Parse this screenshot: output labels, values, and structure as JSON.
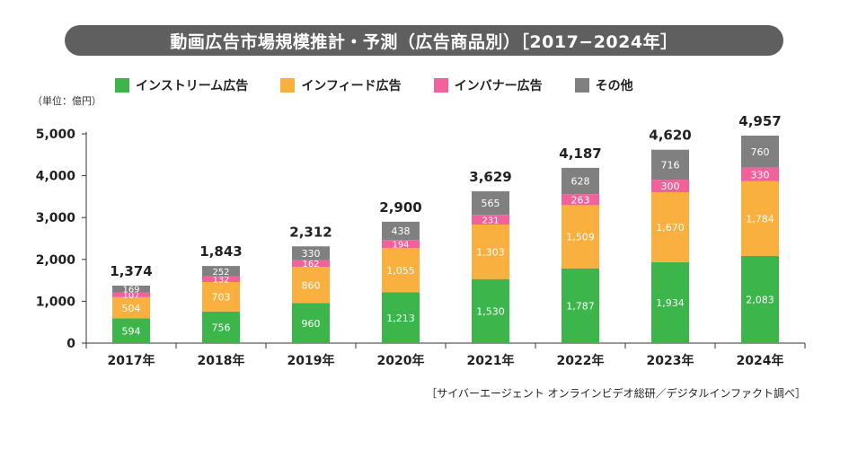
{
  "title": "動画広告市場規模推計・予測（広告商品別）［2017−2024年］",
  "unit_label": "（単位：億円）",
  "source": "［サイバーエージェント オンラインビデオ総研／デジタルインファクト調べ］",
  "colors": {
    "title_bg": "#5f5f5f",
    "stream": "#3cb54a",
    "infeed": "#f9b03e",
    "banner": "#f2629a",
    "other": "#808080"
  },
  "legend": [
    {
      "label": "インストリーム広告",
      "color": "#3cb54a"
    },
    {
      "label": "インフィード広告",
      "color": "#f9b03e"
    },
    {
      "label": "インバナー広告",
      "color": "#f2629a"
    },
    {
      "label": "その他",
      "color": "#808080"
    }
  ],
  "chart_data": {
    "type": "bar",
    "stacked": true,
    "categories": [
      "2017年",
      "2018年",
      "2019年",
      "2020年",
      "2021年",
      "2022年",
      "2023年",
      "2024年"
    ],
    "series": [
      {
        "name": "インストリーム広告",
        "values": [
          594,
          756,
          960,
          1213,
          1530,
          1787,
          1934,
          2083
        ]
      },
      {
        "name": "インフィード広告",
        "values": [
          504,
          703,
          860,
          1055,
          1303,
          1509,
          1670,
          1784
        ]
      },
      {
        "name": "インバナー広告",
        "values": [
          107,
          132,
          162,
          194,
          231,
          263,
          300,
          330
        ]
      },
      {
        "name": "その他",
        "values": [
          169,
          252,
          330,
          438,
          565,
          628,
          716,
          760
        ]
      }
    ],
    "totals": [
      "1,374",
      "1,843",
      "2,312",
      "2,900",
      "3,629",
      "4,187",
      "4,620",
      "4,957"
    ],
    "ylim": [
      0,
      5000
    ],
    "yticks": [
      0,
      1000,
      2000,
      3000,
      4000,
      5000
    ],
    "ytick_labels": [
      "0",
      "1,000",
      "2,000",
      "3,000",
      "4,000",
      "5,000"
    ],
    "grid": false,
    "legend_position": "top"
  }
}
